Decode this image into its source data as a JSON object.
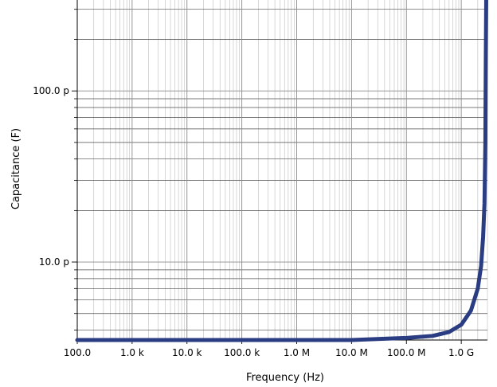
{
  "chart_data": {
    "type": "line",
    "xlabel": "Frequency (Hz)",
    "ylabel": "Capacitance (F)",
    "x_scale": "log",
    "y_scale": "log",
    "xlim": [
      100,
      3000000000
    ],
    "ylim": [
      3.5e-12,
      3.4e-10
    ],
    "grid": true,
    "line_color": "#2b3d82",
    "x_ticks": [
      {
        "value": 100,
        "label": "100.0"
      },
      {
        "value": 1000,
        "label": "1.0 k"
      },
      {
        "value": 10000,
        "label": "10.0 k"
      },
      {
        "value": 100000,
        "label": "100.0 k"
      },
      {
        "value": 1000000,
        "label": "1.0 M"
      },
      {
        "value": 10000000,
        "label": "10.0 M"
      },
      {
        "value": 100000000,
        "label": "100.0 M"
      },
      {
        "value": 1000000000,
        "label": "1.0 G"
      }
    ],
    "y_ticks": [
      {
        "value": 1e-11,
        "label": "10.0 p"
      },
      {
        "value": 1e-10,
        "label": "100.0 p"
      }
    ],
    "series": [
      {
        "x": [
          100,
          1000,
          10000,
          100000,
          1000000,
          10000000,
          100000000,
          300000000,
          600000000,
          1000000000,
          1500000000,
          2000000000,
          2300000000,
          2500000000,
          2650000000,
          2750000000,
          2800000000,
          2850000000
        ],
        "y": [
          3.5e-12,
          3.5e-12,
          3.5e-12,
          3.5e-12,
          3.5e-12,
          3.5e-12,
          3.6e-12,
          3.7e-12,
          3.9e-12,
          4.3e-12,
          5.2e-12,
          7e-12,
          9.5e-12,
          1.4e-11,
          2.2e-11,
          5e-11,
          1.5e-10,
          3.4e-10
        ]
      }
    ]
  }
}
